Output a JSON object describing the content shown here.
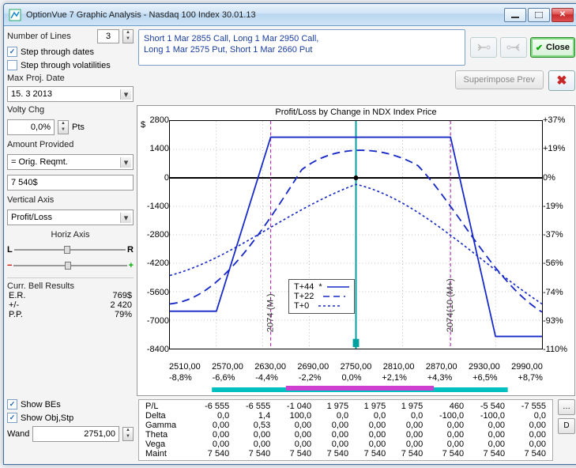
{
  "window": {
    "title": "OptionVue 7 Graphic Analysis - Nasdaq 100 Index  30.01.13"
  },
  "toolbar": {
    "numlines_label": "Number of Lines",
    "numlines_value": "3",
    "step_dates": "Step through dates",
    "step_vols": "Step through volatilities",
    "max_proj_label": "Max Proj. Date",
    "max_proj_value": "15. 3 2013",
    "close_label": "Close",
    "superimpose": "Superimpose Prev"
  },
  "positions": {
    "line1": "Short 1 Mar 2855 Call, Long 1 Mar 2950 Call,",
    "line2": "Long 1 Mar 2575 Put, Short 1 Mar 2660 Put"
  },
  "side": {
    "volty_label": "Volty Chg",
    "volty_value": "0,0%",
    "volty_unit": "Pts",
    "amount_label": "Amount Provided",
    "amount_dropdown": "= Orig. Reqmt.",
    "amount_value": "7 540$",
    "vaxis_label": "Vertical Axis",
    "vaxis_value": "Profit/Loss",
    "haxis_label": "Horiz Axis",
    "L": "L",
    "R": "R",
    "bell_label": "Curr. Bell Results",
    "bell_rows": [
      [
        "E.R.",
        "769$"
      ],
      [
        "+/-",
        "2 420"
      ],
      [
        "P.P.",
        "79%"
      ]
    ]
  },
  "chart": {
    "title": "Profit/Loss by Change in NDX Index Price",
    "y_dollar": "$",
    "y_left": [
      "2800",
      "1400",
      "0",
      "-1400",
      "-2800",
      "-4200",
      "-5600",
      "-7000",
      "-8400"
    ],
    "y_right": [
      "+37%",
      "+19%",
      "0%",
      "-19%",
      "-37%",
      "-56%",
      "-74%",
      "-93%",
      "-110%"
    ],
    "x_prices": [
      "2510,00",
      "2570,00",
      "2630,00",
      "2690,00",
      "2750,00",
      "2810,00",
      "2870,00",
      "2930,00",
      "2990,00"
    ],
    "x_pct": [
      "-8,8%",
      "-6,6%",
      "-4,4%",
      "-2,2%",
      "0,0%",
      "+2,1%",
      "+4,3%",
      "+6,5%",
      "+8,7%"
    ],
    "legend": [
      {
        "label": "T+44",
        "style": "solid",
        "marker": "*"
      },
      {
        "label": "T+22",
        "style": "longdash",
        "marker": ""
      },
      {
        "label": "T+0",
        "style": "shortdash",
        "marker": ""
      }
    ],
    "colors": {
      "line": "#1728c8",
      "zero": "#000000",
      "vline": "#b030b0",
      "center": "#00a0a0",
      "prob_outer": "#00c0c0",
      "prob_inner": "#d040d0"
    }
  },
  "bottom": {
    "show_bes": "Show BEs",
    "show_objstp": "Show Obj,Stp",
    "wand_label": "Wand",
    "wand_value": "2751,00",
    "D": "D",
    "rows": [
      {
        "name": "P/L",
        "v": [
          "-6 555",
          "-6 555",
          "-1 040",
          "1 975",
          "1 975",
          "1 975",
          "460",
          "-5 540",
          "-7 555"
        ]
      },
      {
        "name": "Delta",
        "v": [
          "0,0",
          "1,4",
          "100,0",
          "0,0",
          "0,0",
          "0,0",
          "-100,0",
          "-100,0",
          "0,0"
        ]
      },
      {
        "name": "Gamma",
        "v": [
          "0,00",
          "0,53",
          "0,00",
          "0,00",
          "0,00",
          "0,00",
          "0,00",
          "0,00",
          "0,00"
        ]
      },
      {
        "name": "Theta",
        "v": [
          "0,00",
          "0,00",
          "0,00",
          "0,00",
          "0,00",
          "0,00",
          "0,00",
          "0,00",
          "0,00"
        ]
      },
      {
        "name": "Vega",
        "v": [
          "0,00",
          "0,00",
          "0,00",
          "0,00",
          "0,00",
          "0,00",
          "0,00",
          "0,00",
          "0,00"
        ]
      },
      {
        "name": "Maint",
        "v": [
          "7 540",
          "7 540",
          "7 540",
          "7 540",
          "7 540",
          "7 540",
          "7 540",
          "7 540",
          "7 540"
        ]
      }
    ]
  }
}
